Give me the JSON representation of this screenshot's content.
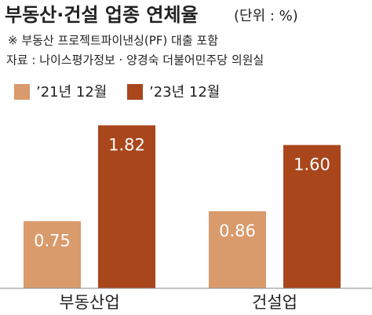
{
  "chart_data": {
    "type": "bar",
    "title": "부동산·건설 업종 연체율",
    "unit": "(단위 : %)",
    "subtitle": "※ 부동산 프로젝트파이낸싱(PF) 대출 포함",
    "source": "자료 : 나이스평가정보 · 양경숙 더불어민주당 의원실",
    "categories": [
      "부동산업",
      "건설업"
    ],
    "series": [
      {
        "name": "’21년 12월",
        "color": "#d99a6c",
        "values": [
          0.75,
          0.86
        ],
        "value_labels": [
          "0.75",
          "0.86"
        ]
      },
      {
        "name": "’23년 12월",
        "color": "#a9461c",
        "values": [
          1.82,
          1.6
        ],
        "value_labels": [
          "1.82",
          "1.60"
        ]
      }
    ],
    "ylim": [
      0,
      2
    ]
  }
}
